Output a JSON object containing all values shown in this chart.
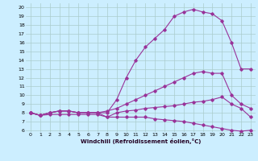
{
  "xlabel": "Windchill (Refroidissement éolien,°C)",
  "background_color": "#cceeff",
  "grid_color": "#aacccc",
  "line_color": "#993399",
  "x_ticks": [
    0,
    1,
    2,
    3,
    4,
    5,
    6,
    7,
    8,
    9,
    10,
    11,
    12,
    13,
    14,
    15,
    16,
    17,
    18,
    19,
    20,
    21,
    22,
    23
  ],
  "y_ticks": [
    6,
    7,
    8,
    9,
    10,
    11,
    12,
    13,
    14,
    15,
    16,
    17,
    18,
    19,
    20
  ],
  "ylim": [
    5.8,
    20.5
  ],
  "xlim": [
    -0.5,
    23.5
  ],
  "series": [
    {
      "x": [
        0,
        1,
        2,
        3,
        4,
        5,
        6,
        7,
        8,
        9,
        10,
        11,
        12,
        13,
        14,
        15,
        16,
        17,
        18,
        19,
        20,
        21,
        22,
        23
      ],
      "y": [
        8.0,
        7.7,
        8.0,
        8.2,
        8.2,
        8.0,
        8.0,
        8.0,
        8.0,
        9.5,
        12.0,
        14.0,
        15.5,
        16.5,
        17.5,
        19.0,
        19.5,
        19.8,
        19.5,
        19.3,
        18.5,
        16.0,
        13.0,
        13.0
      ]
    },
    {
      "x": [
        0,
        1,
        2,
        3,
        4,
        5,
        6,
        7,
        8,
        9,
        10,
        11,
        12,
        13,
        14,
        15,
        16,
        17,
        18,
        19,
        20,
        21,
        22,
        23
      ],
      "y": [
        8.0,
        7.7,
        8.0,
        8.2,
        8.2,
        8.0,
        8.0,
        8.0,
        8.2,
        8.5,
        9.0,
        9.5,
        10.0,
        10.5,
        11.0,
        11.5,
        12.0,
        12.5,
        12.7,
        12.5,
        12.5,
        10.0,
        9.0,
        8.5
      ]
    },
    {
      "x": [
        0,
        1,
        2,
        3,
        4,
        5,
        6,
        7,
        8,
        9,
        10,
        11,
        12,
        13,
        14,
        15,
        16,
        17,
        18,
        19,
        20,
        21,
        22,
        23
      ],
      "y": [
        8.0,
        7.7,
        8.0,
        8.2,
        8.2,
        8.0,
        8.0,
        8.0,
        7.5,
        8.0,
        8.2,
        8.3,
        8.5,
        8.6,
        8.7,
        8.8,
        9.0,
        9.2,
        9.3,
        9.5,
        9.8,
        9.0,
        8.5,
        7.5
      ]
    },
    {
      "x": [
        0,
        1,
        2,
        3,
        4,
        5,
        6,
        7,
        8,
        9,
        10,
        11,
        12,
        13,
        14,
        15,
        16,
        17,
        18,
        19,
        20,
        21,
        22,
        23
      ],
      "y": [
        8.0,
        7.7,
        7.8,
        7.8,
        7.8,
        7.8,
        7.8,
        7.8,
        7.5,
        7.5,
        7.5,
        7.5,
        7.5,
        7.3,
        7.2,
        7.1,
        7.0,
        6.8,
        6.6,
        6.4,
        6.2,
        6.0,
        5.9,
        6.0
      ]
    }
  ]
}
